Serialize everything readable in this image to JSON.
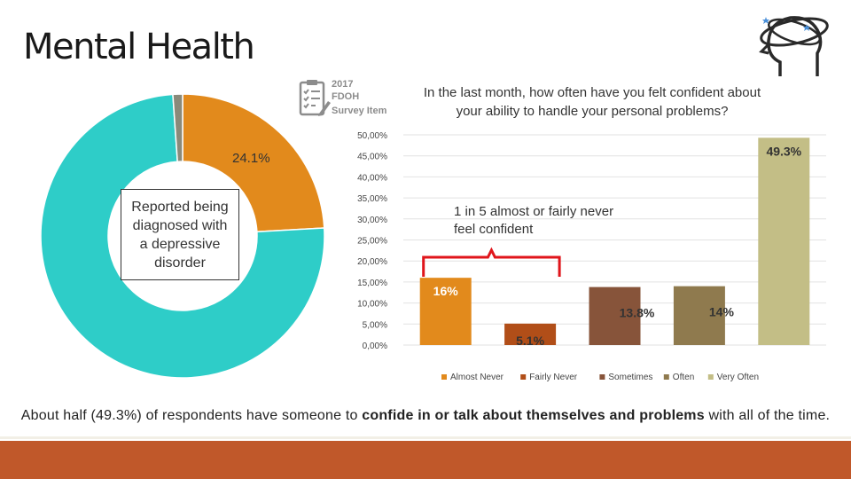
{
  "page": {
    "title": "Mental Health",
    "badge": {
      "year": "2017",
      "org": "FDOH",
      "sub": "Survey Item"
    },
    "summary": {
      "part1": "About half (49.3%) of respondents have someone to ",
      "bold1": "confide in or talk about themselves and problems",
      "part2": " with all of the time."
    },
    "colors": {
      "band": "#c0582a"
    },
    "icons": {
      "brain": "head-with-orbits-icon",
      "survey": "clipboard-checklist-icon"
    }
  },
  "chart_data": [
    {
      "type": "pie",
      "variant": "donut",
      "slices": [
        {
          "value": 24.1,
          "color": "#e28a1c"
        },
        {
          "value": 74.8,
          "color": "#2ecdc8"
        },
        {
          "value": 1.1,
          "color": "#8a8a7a"
        }
      ],
      "data_label": "24.1%",
      "callout": "Reported being diagnosed with a depressive disorder"
    },
    {
      "type": "bar",
      "title": "In the last month, how often have you felt confident about your ability to handle your personal problems?",
      "categories": [
        "Almost Never",
        "Fairly Never",
        "Sometimes",
        "Often",
        "Very Often"
      ],
      "values": [
        16,
        5.1,
        13.8,
        14,
        49.3
      ],
      "data_labels": [
        "16%",
        "5.1%",
        "13.8%",
        "14%",
        "49.3%"
      ],
      "colors": [
        "#e28a1c",
        "#b14e18",
        "#87543a",
        "#8f7a4e",
        "#c3be86"
      ],
      "ylim": [
        0,
        50
      ],
      "yticks": [
        "0,00%",
        "5,00%",
        "10,00%",
        "15,00%",
        "20,00%",
        "25,00%",
        "30,00%",
        "35,00%",
        "40,00%",
        "45,00%",
        "50,00%"
      ],
      "grid": true,
      "legend": "bottom",
      "annotation": "1 in 5 almost or fairly never feel confident"
    }
  ]
}
